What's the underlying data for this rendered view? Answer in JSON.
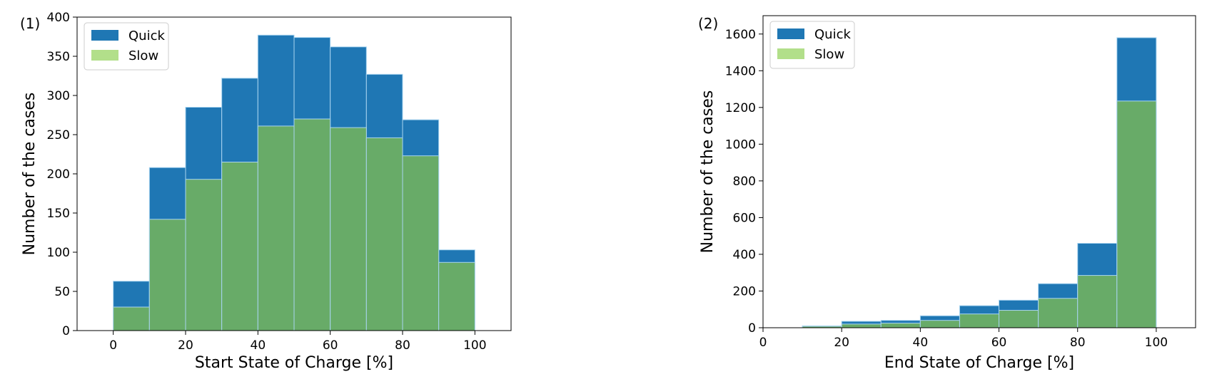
{
  "chart_data": [
    {
      "type": "bar",
      "panel_label": "(1)",
      "xlabel": "Start State of Charge [%]",
      "ylabel": "Number of the cases",
      "xlim": [
        -10,
        110
      ],
      "ylim": [
        0,
        400
      ],
      "xticks": [
        0,
        20,
        40,
        60,
        80,
        100
      ],
      "yticks": [
        0,
        50,
        100,
        150,
        200,
        250,
        300,
        350,
        400
      ],
      "bin_edges": [
        0,
        10,
        20,
        30,
        40,
        50,
        60,
        70,
        80,
        90,
        100
      ],
      "legend_position": "top-left",
      "series": [
        {
          "name": "Quick",
          "color": "#1f77b4",
          "values": [
            63,
            208,
            285,
            322,
            377,
            374,
            362,
            327,
            269,
            103
          ]
        },
        {
          "name": "Slow",
          "color": "#b2df8a",
          "values": [
            30,
            142,
            193,
            215,
            261,
            270,
            259,
            246,
            223,
            87
          ]
        }
      ]
    },
    {
      "type": "bar",
      "panel_label": "(2)",
      "xlabel": "End State of Charge [%]",
      "ylabel": "Number of the cases",
      "xlim": [
        0,
        110
      ],
      "ylim": [
        0,
        1700
      ],
      "xticks": [
        0,
        20,
        40,
        60,
        80,
        100
      ],
      "yticks": [
        0,
        200,
        400,
        600,
        800,
        1000,
        1200,
        1400,
        1600
      ],
      "bin_edges": [
        10,
        20,
        30,
        40,
        50,
        60,
        70,
        80,
        90,
        100
      ],
      "legend_position": "top-left",
      "series": [
        {
          "name": "Quick",
          "color": "#1f77b4",
          "values": [
            10,
            35,
            40,
            65,
            120,
            150,
            240,
            460,
            1580
          ]
        },
        {
          "name": "Slow",
          "color": "#b2df8a",
          "values": [
            8,
            20,
            25,
            40,
            75,
            95,
            160,
            285,
            1235
          ]
        }
      ]
    }
  ]
}
